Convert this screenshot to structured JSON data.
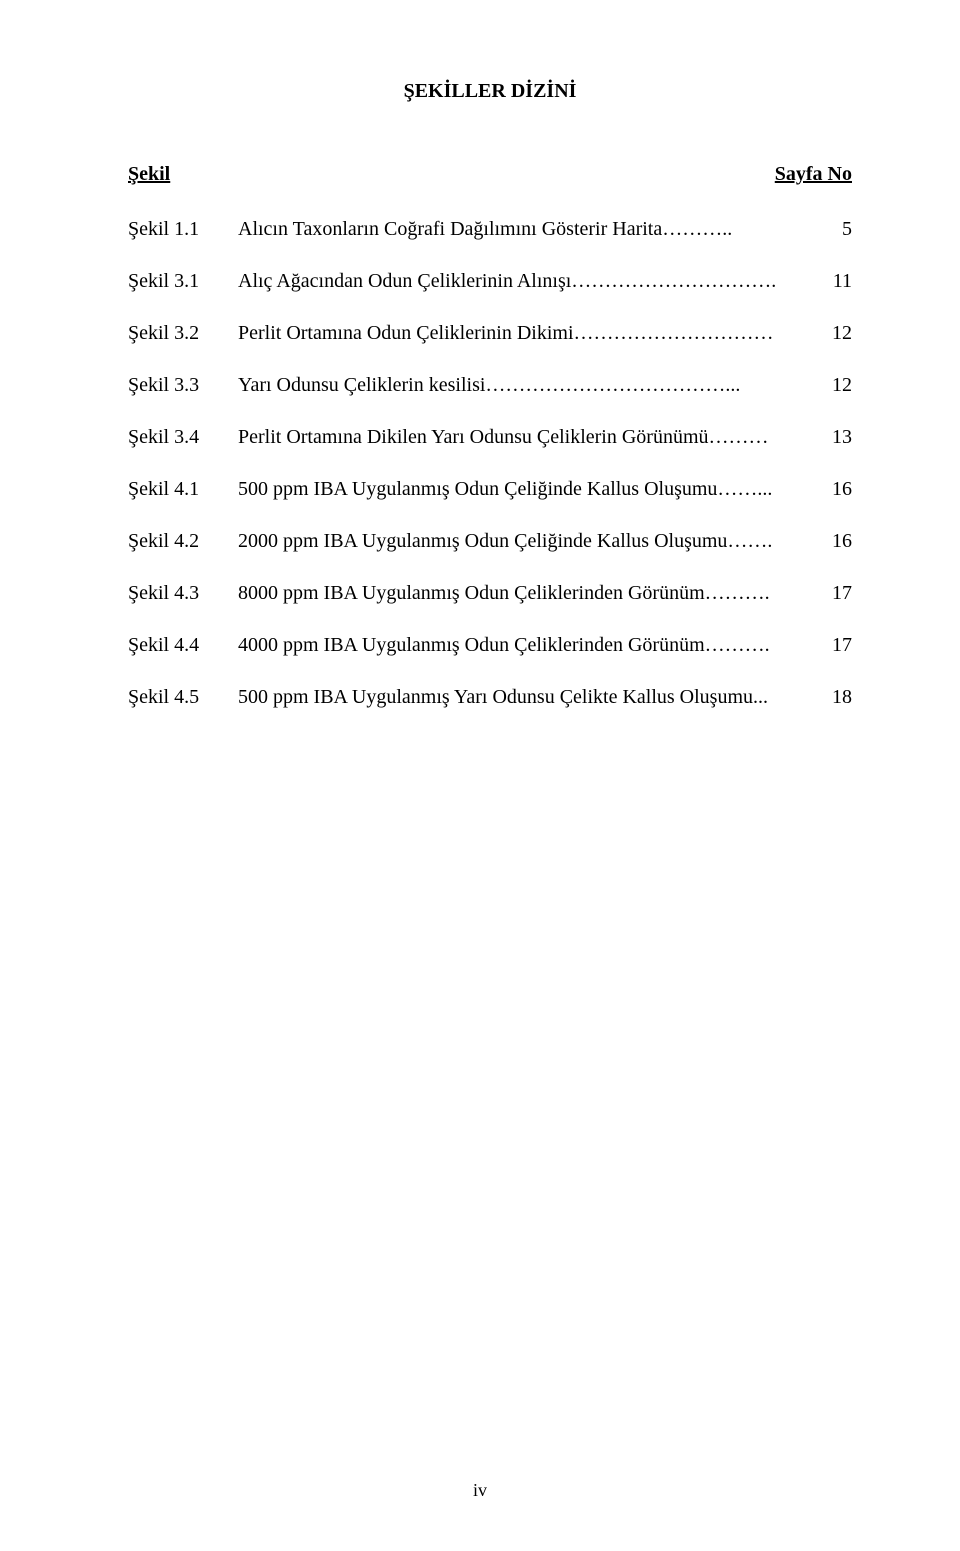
{
  "title": "ŞEKİLLER DİZİNİ",
  "header": {
    "left": "Şekil",
    "right": "Sayfa No"
  },
  "entries": [
    {
      "label": "Şekil 1.1",
      "desc": "Alıcın Taxonların Coğrafi Dağılımını Gösterir Harita………..",
      "page": "5"
    },
    {
      "label": "Şekil 3.1",
      "desc": "Alıç Ağacından Odun Çeliklerinin Alınışı………………………….",
      "page": "11"
    },
    {
      "label": "Şekil 3.2",
      "desc": "Perlit Ortamına Odun Çeliklerinin Dikimi…………………………",
      "page": "12"
    },
    {
      "label": "Şekil 3.3",
      "desc": "Yarı Odunsu Çeliklerin kesilisi………………………………...",
      "page": "12"
    },
    {
      "label": "Şekil 3.4",
      "desc": "Perlit Ortamına Dikilen Yarı Odunsu Çeliklerin Görünümü………",
      "page": "13"
    },
    {
      "label": "Şekil 4.1",
      "desc": "500 ppm IBA Uygulanmış Odun Çeliğinde Kallus Oluşumu……...",
      "page": "16"
    },
    {
      "label": "Şekil 4.2",
      "desc": "2000 ppm IBA Uygulanmış Odun Çeliğinde Kallus Oluşumu…….",
      "page": "16"
    },
    {
      "label": "Şekil 4.3",
      "desc": "8000 ppm IBA Uygulanmış Odun Çeliklerinden Görünüm……….",
      "page": "17"
    },
    {
      "label": "Şekil 4.4",
      "desc": "4000 ppm IBA Uygulanmış Odun Çeliklerinden Görünüm……….",
      "page": "17"
    },
    {
      "label": "Şekil 4.5",
      "desc": "500 ppm IBA Uygulanmış Yarı Odunsu Çelikte Kallus Oluşumu...",
      "page": "18"
    }
  ],
  "pageNumber": "iv",
  "colors": {
    "background": "#ffffff",
    "text": "#000000"
  },
  "typography": {
    "fontFamily": "Times New Roman",
    "titleSize": 20,
    "bodySize": 20,
    "pageNumSize": 18
  }
}
